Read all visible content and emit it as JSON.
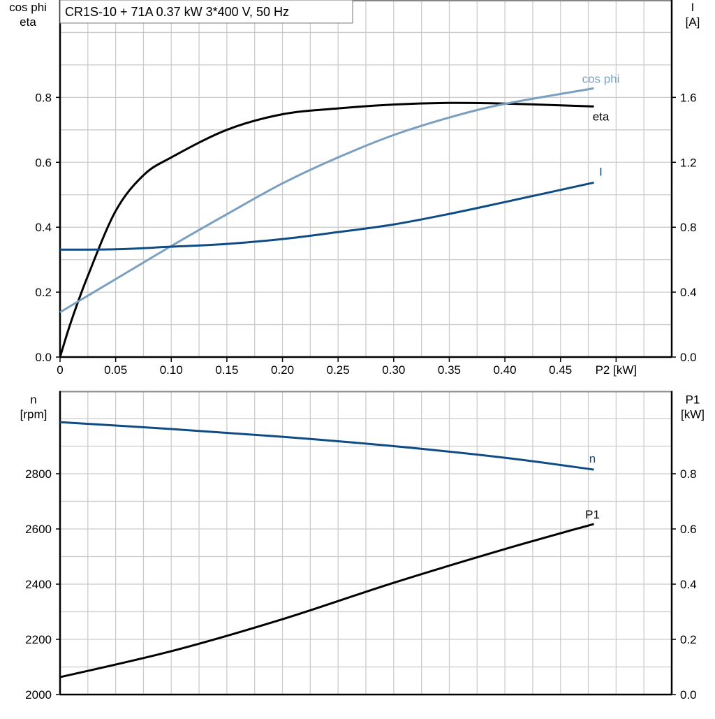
{
  "title": "CR1S-10 + 71A   0.37 kW   3*400 V, 50 Hz",
  "colors": {
    "eta": "#000000",
    "cos_phi": "#7a9fc0",
    "I": "#0f4c85",
    "n": "#0f4c85",
    "P1": "#000000",
    "grid": "#cccccc"
  },
  "chart_data": [
    {
      "type": "line",
      "xlabel": "P2 [kW]",
      "xlim": [
        0,
        0.55
      ],
      "x_ticks": [
        "0",
        "0.05",
        "0.10",
        "0.15",
        "0.20",
        "0.25",
        "0.30",
        "0.35",
        "0.40",
        "0.45"
      ],
      "ylabel_left": [
        "cos phi",
        "eta"
      ],
      "ylim_left": [
        0,
        1.1
      ],
      "y_ticks_left": [
        "0.0",
        "0.2",
        "0.4",
        "0.6",
        "0.8"
      ],
      "ylabel_right": [
        "I",
        "[A]"
      ],
      "ylim_right": [
        0,
        2.2
      ],
      "y_ticks_right": [
        "0.0",
        "0.4",
        "0.8",
        "1.2",
        "1.6"
      ],
      "grid": true,
      "series": [
        {
          "name": "eta",
          "axis": "left",
          "x": [
            0,
            0.01,
            0.025,
            0.05,
            0.075,
            0.1,
            0.15,
            0.2,
            0.25,
            0.3,
            0.35,
            0.4,
            0.48
          ],
          "y": [
            0,
            0.11,
            0.25,
            0.45,
            0.56,
            0.615,
            0.7,
            0.748,
            0.766,
            0.778,
            0.783,
            0.781,
            0.772
          ]
        },
        {
          "name": "cos phi",
          "axis": "left",
          "x": [
            0,
            0.05,
            0.1,
            0.15,
            0.2,
            0.25,
            0.3,
            0.35,
            0.4,
            0.48
          ],
          "y": [
            0.138,
            0.24,
            0.342,
            0.44,
            0.535,
            0.615,
            0.684,
            0.738,
            0.78,
            0.828
          ]
        },
        {
          "name": "I",
          "axis": "right",
          "x": [
            0,
            0.05,
            0.1,
            0.15,
            0.2,
            0.25,
            0.3,
            0.35,
            0.4,
            0.48
          ],
          "y": [
            0.662,
            0.664,
            0.68,
            0.697,
            0.727,
            0.77,
            0.817,
            0.882,
            0.955,
            1.075
          ]
        }
      ]
    },
    {
      "type": "line",
      "xlim": [
        0,
        0.55
      ],
      "ylabel_left": [
        "n",
        "[rpm]"
      ],
      "ylim_left": [
        2000,
        3100
      ],
      "y_ticks_left": [
        "2000",
        "2200",
        "2400",
        "2600",
        "2800"
      ],
      "ylabel_right": [
        "P1",
        "[kW]"
      ],
      "ylim_right": [
        0,
        1.1
      ],
      "y_ticks_right": [
        "0.0",
        "0.2",
        "0.4",
        "0.6",
        "0.8"
      ],
      "grid": true,
      "series": [
        {
          "name": "n",
          "axis": "left",
          "x": [
            0,
            0.1,
            0.2,
            0.3,
            0.4,
            0.48
          ],
          "y": [
            2987,
            2962,
            2934,
            2900,
            2858,
            2815
          ]
        },
        {
          "name": "P1",
          "axis": "right",
          "x": [
            0,
            0.1,
            0.2,
            0.3,
            0.4,
            0.48
          ],
          "y": [
            0.063,
            0.157,
            0.273,
            0.405,
            0.527,
            0.618
          ]
        }
      ]
    }
  ]
}
